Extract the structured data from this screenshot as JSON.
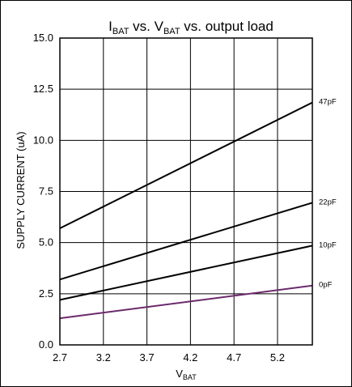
{
  "chart_data": {
    "type": "line",
    "title": {
      "main": "I",
      "sub1": "BAT",
      "mid": " vs. V",
      "sub2": "BAT",
      "tail": " vs. output load"
    },
    "xlabel": {
      "main": "V",
      "sub": "BAT"
    },
    "ylabel": "SUPPLY CURRENT (uA)",
    "xlim": [
      2.7,
      5.6
    ],
    "ylim": [
      0,
      15
    ],
    "x_ticks": [
      2.7,
      3.2,
      3.7,
      4.2,
      4.7,
      5.2
    ],
    "x_tick_labels": [
      "2.7",
      "3.2",
      "3.7",
      "4.2",
      "4.7",
      "5.2"
    ],
    "y_ticks": [
      0,
      2.5,
      5,
      7.5,
      10,
      12.5,
      15
    ],
    "y_tick_labels": [
      "0.0",
      "2.5",
      "5.0",
      "7.5",
      "10.0",
      "12.5",
      "15.0"
    ],
    "grid": true,
    "series": [
      {
        "name": "47pF",
        "x": [
          2.7,
          5.6
        ],
        "y": [
          5.7,
          11.85
        ],
        "color": "#000000"
      },
      {
        "name": "22pF",
        "x": [
          2.7,
          5.6
        ],
        "y": [
          3.2,
          6.95
        ],
        "color": "#000000"
      },
      {
        "name": "10pF",
        "x": [
          2.7,
          5.6
        ],
        "y": [
          2.2,
          4.85
        ],
        "color": "#000000"
      },
      {
        "name": "0pF",
        "x": [
          2.7,
          5.6
        ],
        "y": [
          1.3,
          2.9
        ],
        "color": "#6b2a6b"
      }
    ]
  }
}
